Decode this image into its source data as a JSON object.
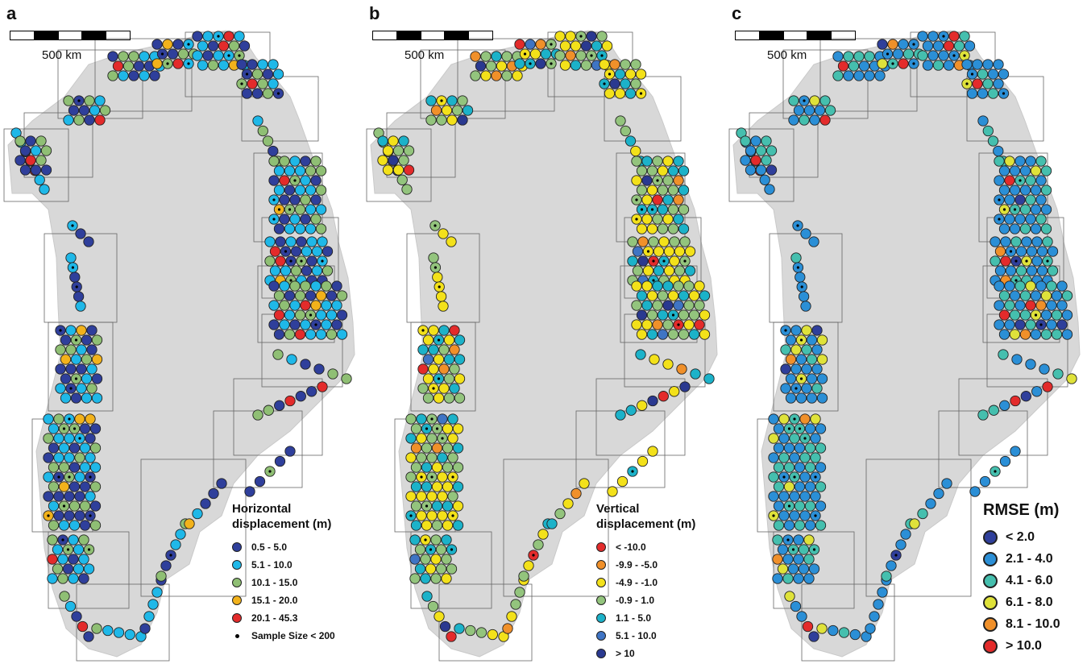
{
  "panels": [
    {
      "label": "a",
      "scale_label": "500 km",
      "legend_title_lines": [
        "Horizontal",
        "displacement (m)"
      ],
      "legend_items": [
        {
          "label": "0.5 - 5.0",
          "color": "#2f3f9b"
        },
        {
          "label": "5.1 - 10.0",
          "color": "#1fb8e8"
        },
        {
          "label": "10.1 - 15.0",
          "color": "#8fbf74"
        },
        {
          "label": "15.1 - 20.0",
          "color": "#f2b21b"
        },
        {
          "label": "20.1 - 45.3",
          "color": "#e32b2b"
        }
      ],
      "sample_note": "Sample Size < 200"
    },
    {
      "label": "b",
      "scale_label": "500 km",
      "legend_title_lines": [
        "Vertical",
        "displacement (m)"
      ],
      "legend_items": [
        {
          "label": "< -10.0",
          "color": "#e32b2b"
        },
        {
          "label": "-9.9 - -5.0",
          "color": "#f0902a"
        },
        {
          "label": "-4.9 - -1.0",
          "color": "#f3e11a"
        },
        {
          "label": "-0.9 - 1.0",
          "color": "#93c47d"
        },
        {
          "label": "1.1 - 5.0",
          "color": "#1cb2c9"
        },
        {
          "label": "5.1 - 10.0",
          "color": "#3f74c4"
        },
        {
          "label": "> 10",
          "color": "#2a3990"
        }
      ]
    },
    {
      "label": "c",
      "scale_label": "500 km",
      "legend_title_lines": [
        "RMSE (m)"
      ],
      "legend_items": [
        {
          "label": "< 2.0",
          "color": "#2f3f9b"
        },
        {
          "label": "2.1 - 4.0",
          "color": "#2b8fd6"
        },
        {
          "label": "4.1 - 6.0",
          "color": "#45bfae"
        },
        {
          "label": "6.1 - 8.0",
          "color": "#dfe23a"
        },
        {
          "label": "8.1 - 10.0",
          "color": "#f0902a"
        },
        {
          "label": "> 10.0",
          "color": "#e32b2b"
        }
      ]
    }
  ],
  "land_color": "#d8d8d8"
}
